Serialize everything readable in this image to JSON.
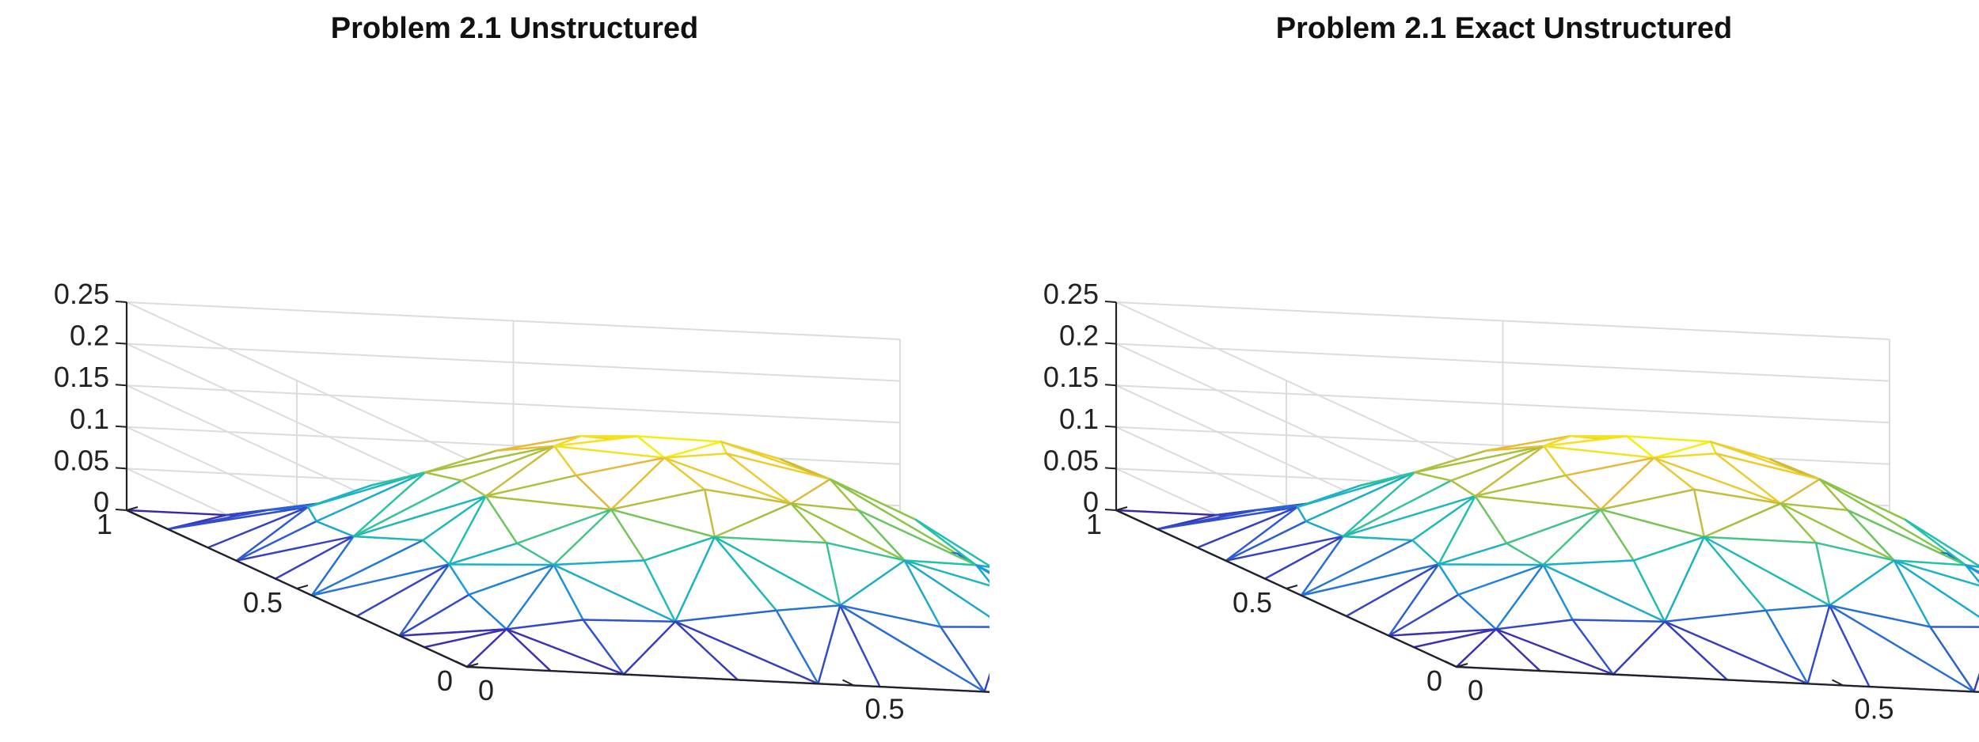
{
  "chart_data": [
    {
      "type": "surface",
      "title": "Problem 2.1 Unstructured",
      "xlim": [
        0,
        1
      ],
      "ylim": [
        0,
        1
      ],
      "zlim": [
        0,
        0.25
      ],
      "x_ticks": [
        "0",
        "0.5",
        "1"
      ],
      "y_ticks": [
        "0",
        "0.5",
        "1"
      ],
      "z_ticks": [
        "0",
        "0.05",
        "0.1",
        "0.15",
        "0.2",
        "0.25"
      ],
      "mesh": "unstructured triangular",
      "surface": "u(x,y) approximately 0.2·sin(pi·x)·sin(pi·y)... peak about 0.2 at (0.5, 0.5), zero on boundary",
      "grid": true,
      "colormap": [
        "#3e26a8",
        "#2f56d4",
        "#18a0dc",
        "#1fc3aa",
        "#8cc63f",
        "#e8b73a",
        "#f8fa0d"
      ]
    },
    {
      "type": "surface",
      "title": "Problem 2.1 Exact Unstructured",
      "xlim": [
        0,
        1
      ],
      "ylim": [
        0,
        1
      ],
      "zlim": [
        0,
        0.25
      ],
      "x_ticks": [
        "0",
        "0.5",
        "1"
      ],
      "y_ticks": [
        "0",
        "0.5",
        "1"
      ],
      "z_ticks": [
        "0",
        "0.05",
        "0.1",
        "0.15",
        "0.2",
        "0.25"
      ],
      "mesh": "unstructured triangular",
      "surface": "u(x,y) approximately 0.2·sin(pi·x)·sin(pi·y)... peak about 0.2 at (0.5, 0.5), zero on boundary",
      "grid": true,
      "colormap": [
        "#3e26a8",
        "#2f56d4",
        "#18a0dc",
        "#1fc3aa",
        "#8cc63f",
        "#e8b73a",
        "#f8fa0d"
      ]
    }
  ]
}
